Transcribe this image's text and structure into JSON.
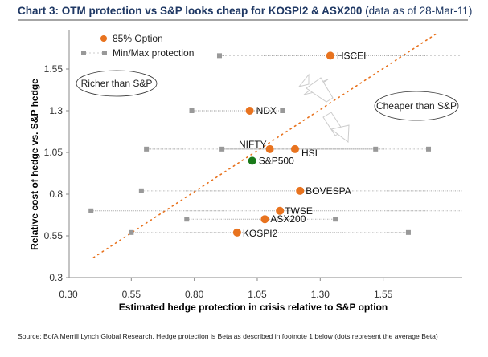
{
  "header": {
    "title_bold": "Chart 3: OTM protection vs S&P looks cheap for KOSPI2 & ASX200",
    "title_normal": "(data as of 28-Mar-11)"
  },
  "footer": {
    "source": "Source: BofA Merrill Lynch Global Research. Hedge protection is Beta as described in footnote 1 below (dots represent the average Beta)"
  },
  "chart_data": {
    "type": "scatter",
    "title": "Chart 3: OTM protection vs S&P looks cheap for KOSPI2 & ASX200 (data as of 28-Mar-11)",
    "xlabel": "Estimated hedge protection in crisis relative to S&P option",
    "ylabel": "Relative cost of hedge vs. S&P hedge",
    "xlim": [
      0.3,
      1.8
    ],
    "ylim": [
      0.3,
      1.8
    ],
    "xticks": [
      "0.30",
      "0.55",
      "0.80",
      "1.05",
      "1.30",
      "1.55"
    ],
    "yticks": [
      "0.3",
      "0.55",
      "0.8",
      "1.05",
      "1.3",
      "1.55"
    ],
    "grid": false,
    "legend": {
      "position": "top-left",
      "entries": [
        {
          "label": "85% Option",
          "marker": "dot",
          "color": "#e8731f"
        },
        {
          "label": "Min/Max protection",
          "marker": "square-range",
          "color": "#999999"
        }
      ]
    },
    "colors": {
      "option": "#e8731f",
      "sp500": "#1a7a1a",
      "range": "#999999",
      "diagonal": "#e8731f"
    },
    "series": [
      {
        "name": "HSCEI",
        "x": 1.34,
        "y": 1.63,
        "min": 0.9,
        "max": 1.87,
        "max_beyond_axis": true
      },
      {
        "name": "NDX",
        "x": 1.02,
        "y": 1.3,
        "min": 0.79,
        "max": 1.15
      },
      {
        "name": "NIFTY",
        "x": 1.1,
        "y": 1.07,
        "min": 0.91,
        "max": 1.52
      },
      {
        "name": "HSI",
        "x": 1.2,
        "y": 1.07,
        "min": 0.61,
        "max": 1.73
      },
      {
        "name": "S&P500",
        "x": 1.03,
        "y": 1.0,
        "reference": true
      },
      {
        "name": "BOVESPA",
        "x": 1.22,
        "y": 0.82,
        "min": 0.59,
        "max": 1.87,
        "max_beyond_axis": true
      },
      {
        "name": "TWSE",
        "x": 1.14,
        "y": 0.7,
        "min": 0.39,
        "max": 1.87,
        "max_beyond_axis": true
      },
      {
        "name": "ASX200",
        "x": 1.08,
        "y": 0.65,
        "min": 0.77,
        "max": 1.36
      },
      {
        "name": "KOSPI2",
        "x": 0.97,
        "y": 0.57,
        "min": 0.55,
        "max": 1.65
      }
    ],
    "diagonal": {
      "from": [
        0.4,
        0.42
      ],
      "to": [
        1.77,
        1.77
      ],
      "style": "dotted"
    },
    "annotations": [
      {
        "text": "Richer than S&P",
        "shape": "ellipse",
        "position": "upper-left"
      },
      {
        "text": "Cheaper than S&P",
        "shape": "ellipse",
        "position": "upper-right"
      },
      {
        "text": "",
        "shape": "arrow-up-left",
        "position": "center-right"
      },
      {
        "text": "",
        "shape": "arrow-down-right",
        "position": "center-right"
      }
    ]
  }
}
